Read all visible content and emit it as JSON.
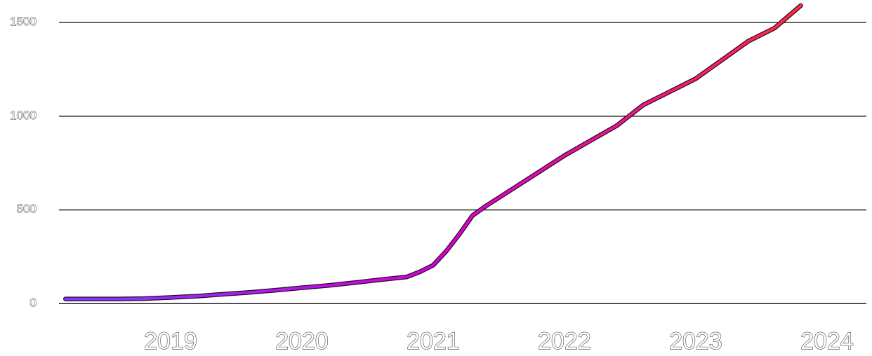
{
  "chart_data": {
    "type": "line",
    "title": "",
    "xlabel": "",
    "ylabel": "",
    "grid": true,
    "xlim": [
      2018.15,
      2024.3
    ],
    "ylim": [
      -25,
      1620
    ],
    "y_ticks": [
      "0",
      "500",
      "1000",
      "1500"
    ],
    "x_ticks": [
      "2019",
      "2020",
      "2021",
      "2022",
      "2023",
      "2024"
    ],
    "gradient_colors": [
      "#7a3cff",
      "#d400d4",
      "#ff2e3a"
    ],
    "series": [
      {
        "x": [
          2018.2,
          2018.4,
          2018.6,
          2018.8,
          2019.0,
          2019.2,
          2019.4,
          2019.6,
          2019.8,
          2020.0,
          2020.2,
          2020.4,
          2020.6,
          2020.8,
          2020.9,
          2021.0,
          2021.1,
          2021.2,
          2021.3,
          2021.4,
          2021.5,
          2021.6,
          2021.8,
          2022.0,
          2022.2,
          2022.4,
          2022.6,
          2022.8,
          2023.0,
          2023.2,
          2023.4,
          2023.6,
          2023.8
        ],
        "y": [
          25,
          25,
          25,
          27,
          33,
          40,
          50,
          60,
          72,
          85,
          97,
          112,
          128,
          143,
          170,
          205,
          280,
          370,
          470,
          520,
          565,
          610,
          700,
          790,
          870,
          950,
          1060,
          1130,
          1200,
          1300,
          1400,
          1470,
          1590
        ]
      }
    ]
  }
}
